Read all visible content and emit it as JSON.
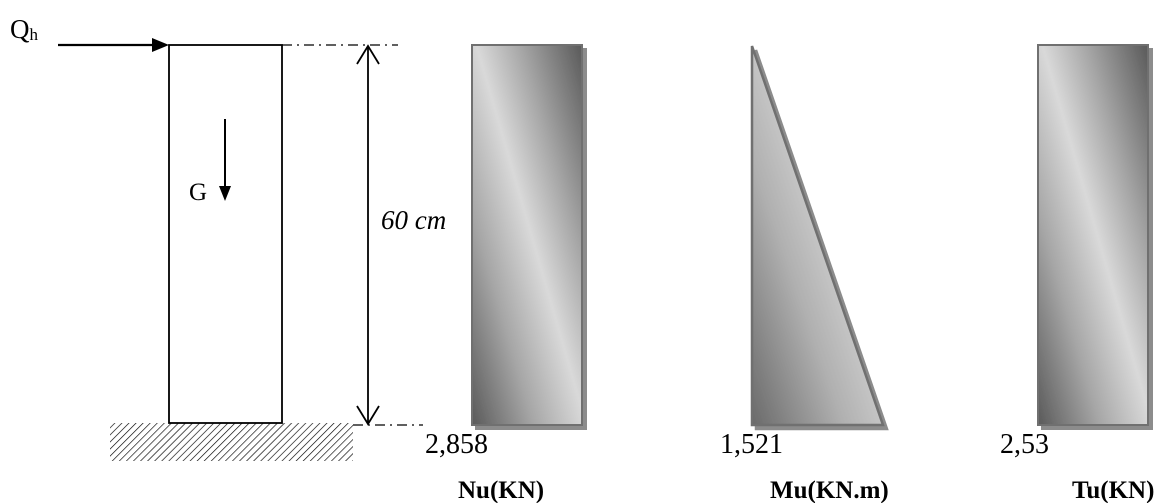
{
  "loads": {
    "horizontal_symbol": "Q",
    "horizontal_subscript": "h",
    "weight": "G"
  },
  "dimension": {
    "height": "60 cm"
  },
  "diagrams": {
    "nu": {
      "value": "2,858",
      "title": "Nu(KN)",
      "shape": "rectangle"
    },
    "mu": {
      "value": "1,521",
      "title": "Mu(KN.m)",
      "shape": "triangle"
    },
    "tu": {
      "value": "2,53",
      "title": "Tu(KN)",
      "shape": "rectangle"
    }
  }
}
